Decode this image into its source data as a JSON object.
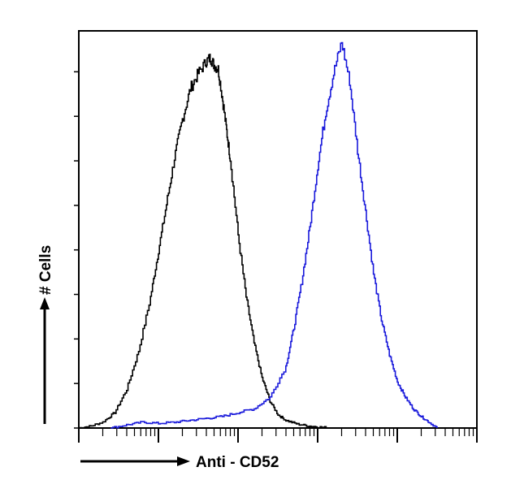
{
  "chart_data": {
    "type": "line",
    "title": "",
    "xlabel": "Anti - CD52",
    "ylabel": "# Cells",
    "x_scale": "log",
    "xlim": [
      0,
      5
    ],
    "ylim": [
      0,
      100
    ],
    "grid": false,
    "legend": "none",
    "y_tick_count": 9,
    "series": [
      {
        "color": "#000000",
        "x": [
          0.0,
          0.15,
          0.3,
          0.45,
          0.6,
          0.75,
          0.9,
          1.0,
          1.1,
          1.2,
          1.3,
          1.4,
          1.5,
          1.6,
          1.65,
          1.7,
          1.75,
          1.8,
          1.85,
          1.9,
          2.0,
          2.1,
          2.2,
          2.3,
          2.4,
          2.5,
          2.6,
          2.75,
          2.9,
          3.05,
          3.2
        ],
        "y": [
          0,
          0.5,
          1.5,
          4,
          10,
          20,
          34,
          46,
          58,
          70,
          80,
          88,
          92,
          95,
          96,
          94,
          93,
          86,
          78,
          70,
          50,
          34,
          22,
          13,
          7,
          3.5,
          2,
          1,
          0.5,
          0.2,
          0
        ]
      },
      {
        "color": "#1a1adb",
        "x": [
          0.4,
          0.6,
          0.8,
          1.0,
          1.2,
          1.4,
          1.6,
          1.8,
          2.0,
          2.2,
          2.4,
          2.6,
          2.7,
          2.8,
          2.9,
          3.0,
          3.1,
          3.2,
          3.3,
          3.4,
          3.5,
          3.6,
          3.7,
          3.8,
          3.9,
          4.0,
          4.1,
          4.2,
          4.3,
          4.4,
          4.5
        ],
        "y": [
          0,
          0.8,
          1.5,
          1.2,
          1.5,
          2.0,
          2.5,
          3.0,
          4.0,
          5.0,
          8.0,
          16,
          26,
          38,
          52,
          68,
          82,
          92,
          100,
          90,
          72,
          56,
          40,
          28,
          19,
          12,
          8,
          5,
          3,
          1.5,
          0
        ]
      }
    ]
  }
}
